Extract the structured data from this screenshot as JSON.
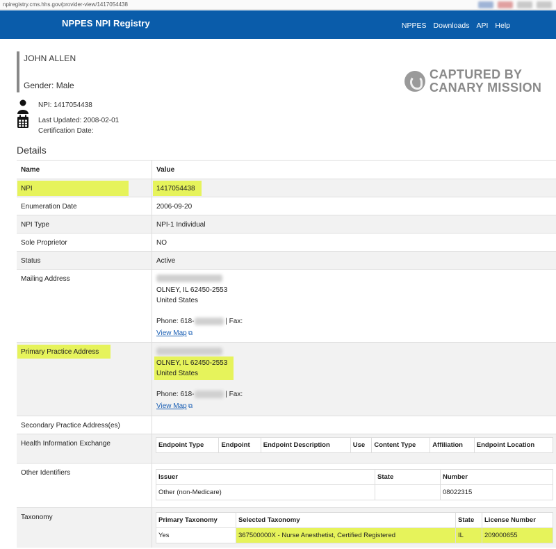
{
  "browser": {
    "url": "npiregistry.cms.hhs.gov/provider-view/1417054438"
  },
  "header": {
    "brand": "NPPES NPI Registry",
    "nav": [
      "NPPES",
      "Downloads",
      "API",
      "Help"
    ]
  },
  "provider": {
    "name": "JOHN ALLEN",
    "gender": "Gender: Male",
    "npi_line": "NPI: 1417054438",
    "last_updated": "Last Updated: 2008-02-01",
    "certification_date": "Certification Date:"
  },
  "watermark": {
    "line1": "CAPTURED BY",
    "line2": "CANARY MISSION"
  },
  "details": {
    "title": "Details",
    "col_name": "Name",
    "col_value": "Value",
    "npi_label": "NPI",
    "npi_value": "1417054438",
    "enum_label": "Enumeration Date",
    "enum_value": "2006-09-20",
    "type_label": "NPI Type",
    "type_value": "NPI-1 Individual",
    "sole_label": "Sole Proprietor",
    "sole_value": "NO",
    "status_label": "Status",
    "status_value": "Active",
    "mailing": {
      "label": "Mailing Address",
      "city": "OLNEY, IL 62450-2553",
      "country": "United States",
      "phone_prefix": "Phone: 618-",
      "fax": "| Fax:",
      "map": "View Map"
    },
    "practice": {
      "label": "Primary Practice Address",
      "city": "OLNEY, IL 62450-2553",
      "country": "United States",
      "phone_prefix": "Phone: 618-",
      "fax": "| Fax:",
      "map": "View Map"
    },
    "secondary_label": "Secondary Practice Address(es)",
    "hie": {
      "label": "Health Information Exchange",
      "headers": [
        "Endpoint Type",
        "Endpoint",
        "Endpoint Description",
        "Use",
        "Content Type",
        "Affiliation",
        "Endpoint Location"
      ]
    },
    "other_ids": {
      "label": "Other Identifiers",
      "headers": [
        "Issuer",
        "State",
        "Number"
      ],
      "row": [
        "Other (non-Medicare)",
        "",
        "08022315"
      ]
    },
    "taxonomy": {
      "label": "Taxonomy",
      "headers": [
        "Primary Taxonomy",
        "Selected Taxonomy",
        "State",
        "License Number"
      ],
      "row": [
        "Yes",
        "367500000X - Nurse Anesthetist, Certified Registered",
        "IL",
        "209000655"
      ]
    }
  },
  "colors": {
    "navbar": "#0a5caa",
    "highlight": "#e6f35b",
    "link": "#1a5fb4"
  }
}
